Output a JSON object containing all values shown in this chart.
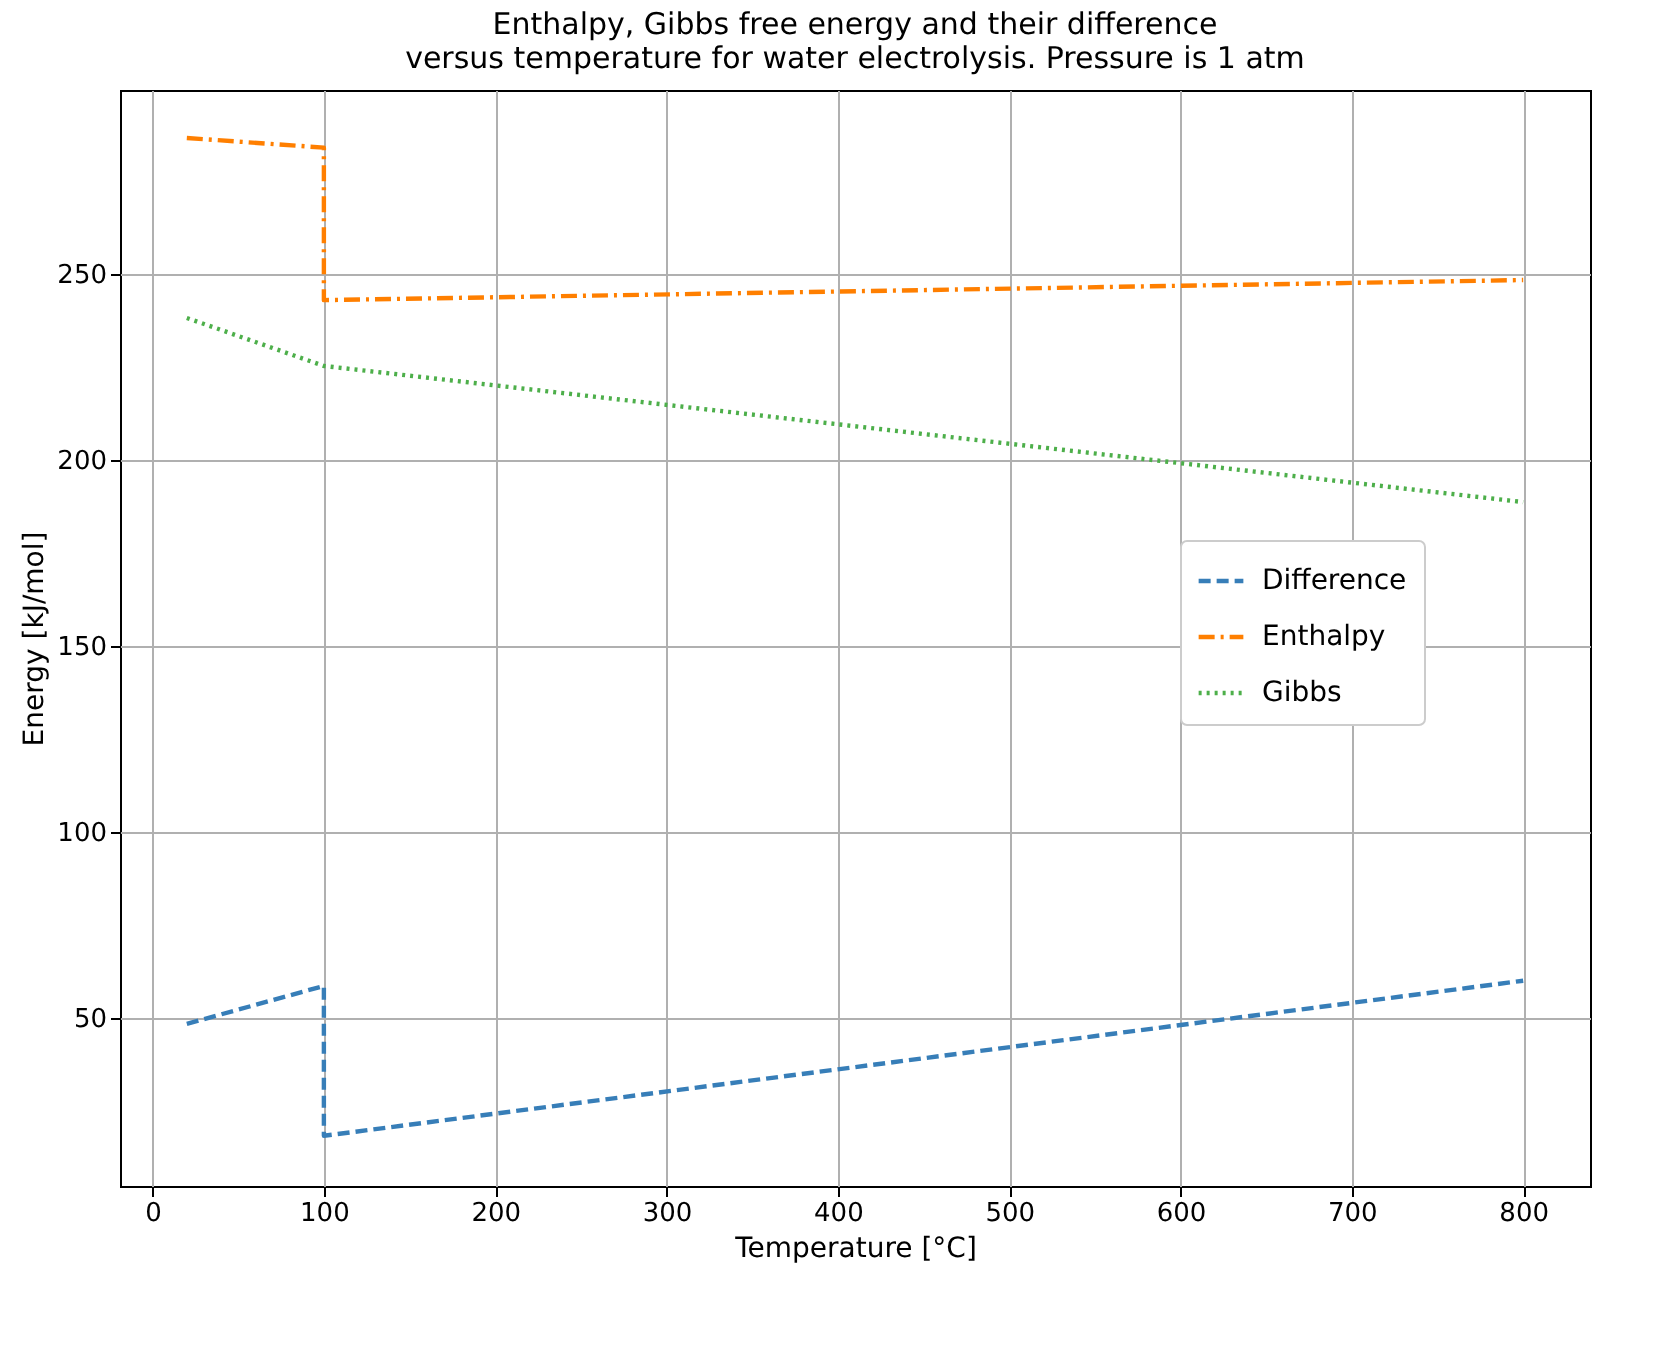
{
  "chart_data": {
    "type": "line",
    "title": "Enthalpy, Gibbs free energy and their difference\nversus temperature for water electrolysis. Pressure is 1 atm",
    "xlabel": "Temperature [°C]",
    "ylabel": "Energy [kJ/mol]",
    "x": [
      20,
      100,
      100,
      800
    ],
    "series": [
      {
        "name": "Difference",
        "color": "#377eb8",
        "line_style": "dashed",
        "values": [
          48.4,
          58.6,
          18.3,
          60
        ]
      },
      {
        "name": "Enthalpy",
        "color": "#ff7f00",
        "line_style": "dashdot",
        "values": [
          286.6,
          284,
          243,
          248.4
        ]
      },
      {
        "name": "Gibbs",
        "color": "#4daf4a",
        "line_style": "dotted",
        "values": [
          238.2,
          225.3,
          225.3,
          188.7
        ]
      }
    ],
    "xlim": [
      -19,
      839
    ],
    "xticks": [
      0,
      100,
      200,
      300,
      400,
      500,
      600,
      700,
      800
    ],
    "ylim": [
      4.8,
      299.5
    ],
    "yticks": [
      50,
      100,
      150,
      200,
      250
    ],
    "grid": true,
    "legend": "right",
    "marker": "none"
  }
}
